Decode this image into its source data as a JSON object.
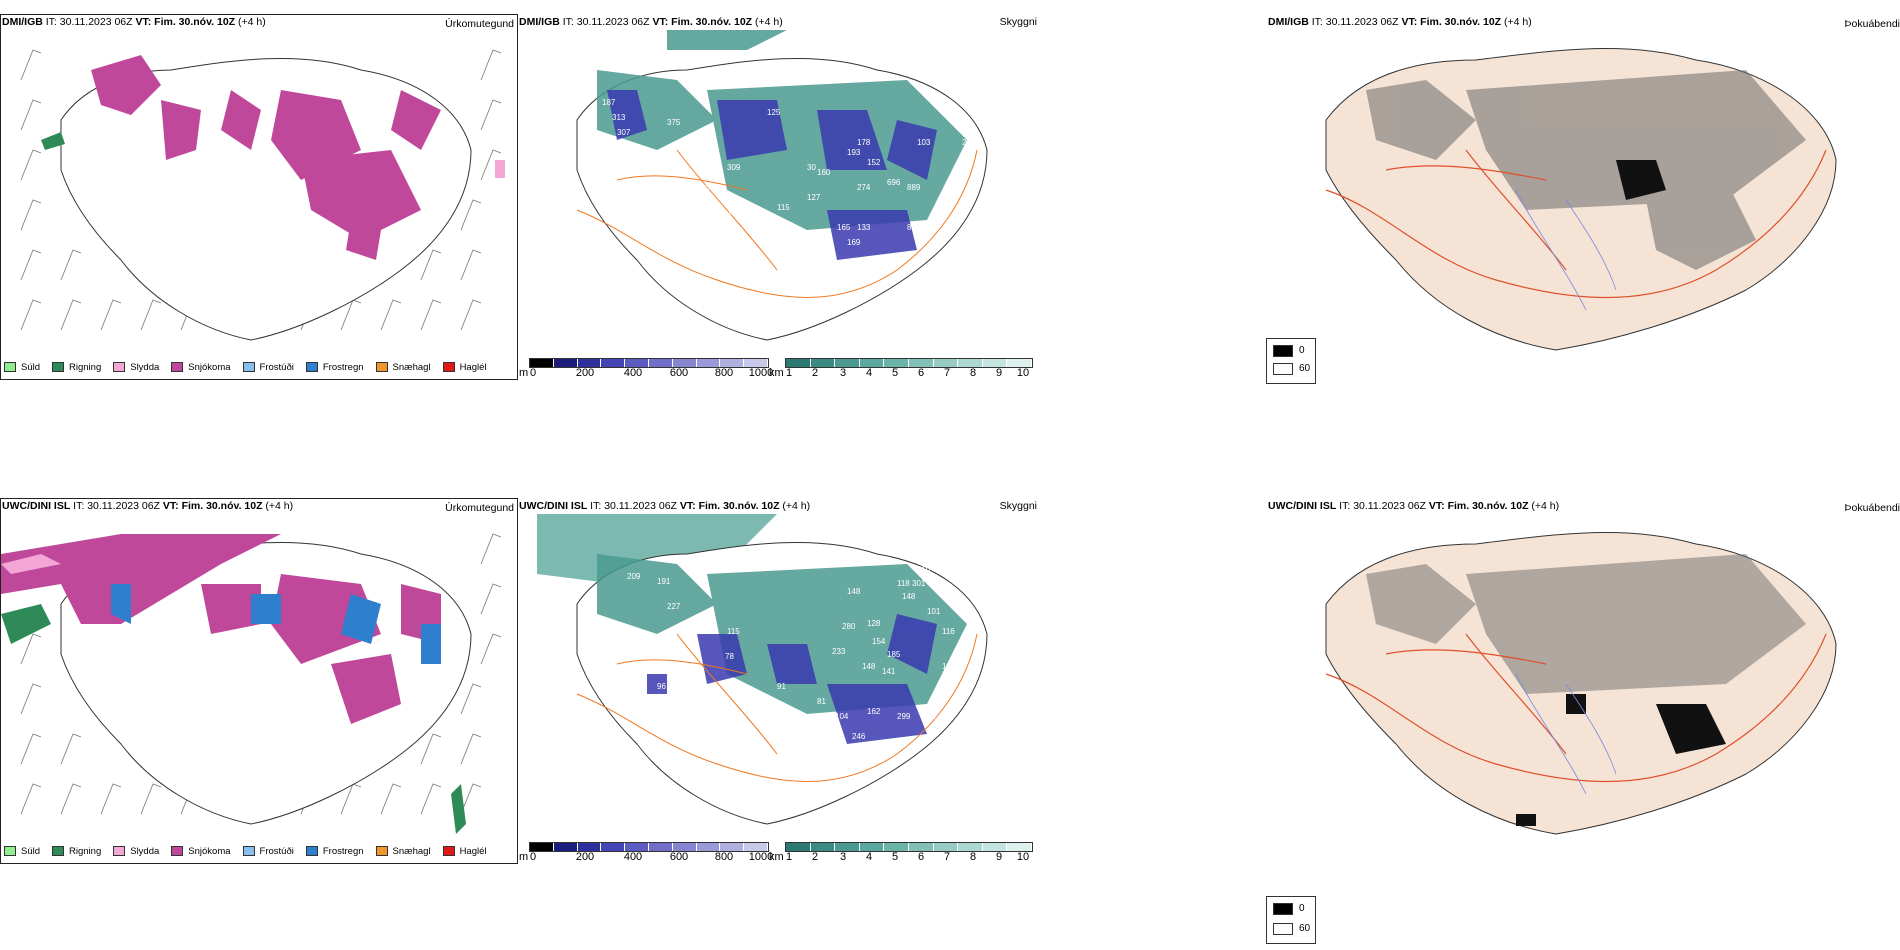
{
  "rows": [
    {
      "model": "DMI/IGB",
      "it_label": "IT:",
      "it_value": "30.11.2023 06Z",
      "vt_label": "VT:",
      "vt_value": "Fim. 30.nóv. 10Z",
      "lead": "(+4 h)"
    },
    {
      "model": "UWC/DINI ISL",
      "it_label": "IT:",
      "it_value": "30.11.2023 06Z",
      "vt_label": "VT:",
      "vt_value": "Fim. 30.nóv. 10Z",
      "lead": "(+4 h)"
    }
  ],
  "panel_titles": {
    "precip_type": "Úrkomutegund",
    "visibility": "Skyggni",
    "fog": "Þokuábendi"
  },
  "precip_legend": [
    {
      "label": "Súld",
      "color": "#90ee90"
    },
    {
      "label": "Rigning",
      "color": "#2e8b57"
    },
    {
      "label": "Slydda",
      "color": "#f4a6d7"
    },
    {
      "label": "Snjókoma",
      "color": "#c0489a"
    },
    {
      "label": "Frostúði",
      "color": "#87bff0"
    },
    {
      "label": "Frostregn",
      "color": "#2f7fcf"
    },
    {
      "label": "Snæhagl",
      "color": "#f0962a"
    },
    {
      "label": "Haglél",
      "color": "#e01818"
    }
  ],
  "visibility_m_bar": {
    "unit": "m",
    "ticks": [
      "0",
      "200",
      "400",
      "600",
      "800",
      "1000"
    ],
    "colors": [
      "#000000",
      "#1c1c7c",
      "#2e2e9c",
      "#4444b4",
      "#5b5bc0",
      "#7070c8",
      "#8585d0",
      "#9a9ad8",
      "#b0b0e0",
      "#c8c8ea"
    ]
  },
  "visibility_km_bar": {
    "unit": "km",
    "ticks": [
      "1",
      "2",
      "3",
      "4",
      "5",
      "6",
      "7",
      "8",
      "9",
      "10"
    ],
    "colors": [
      "#2a7a72",
      "#3a8c82",
      "#4a9a90",
      "#5aa89e",
      "#6cb4aa",
      "#80c0b6",
      "#96ccc4",
      "#acd8d2",
      "#c4e4e0",
      "#ddf0ee"
    ]
  },
  "fog_legend": [
    {
      "label": "0",
      "color": "#000000"
    },
    {
      "label": "60",
      "color": "#ffffff"
    }
  ],
  "visibility_values_top": [
    "187",
    "313",
    "307",
    "375",
    "96",
    "160",
    "110",
    "112",
    "100",
    "130",
    "309",
    "125",
    "115",
    "127",
    "30",
    "160",
    "193",
    "178",
    "152",
    "274",
    "696",
    "889",
    "86",
    "169",
    "133",
    "165",
    "103",
    "280",
    "295",
    "104"
  ],
  "visibility_values_bottom": [
    "209",
    "191",
    "227",
    "115",
    "78",
    "81",
    "52",
    "96",
    "91",
    "81",
    "104",
    "162",
    "299",
    "80",
    "246",
    "280",
    "128",
    "154",
    "185",
    "141",
    "148",
    "233",
    "116",
    "105",
    "148",
    "301",
    "118",
    "148",
    "310",
    "101"
  ]
}
